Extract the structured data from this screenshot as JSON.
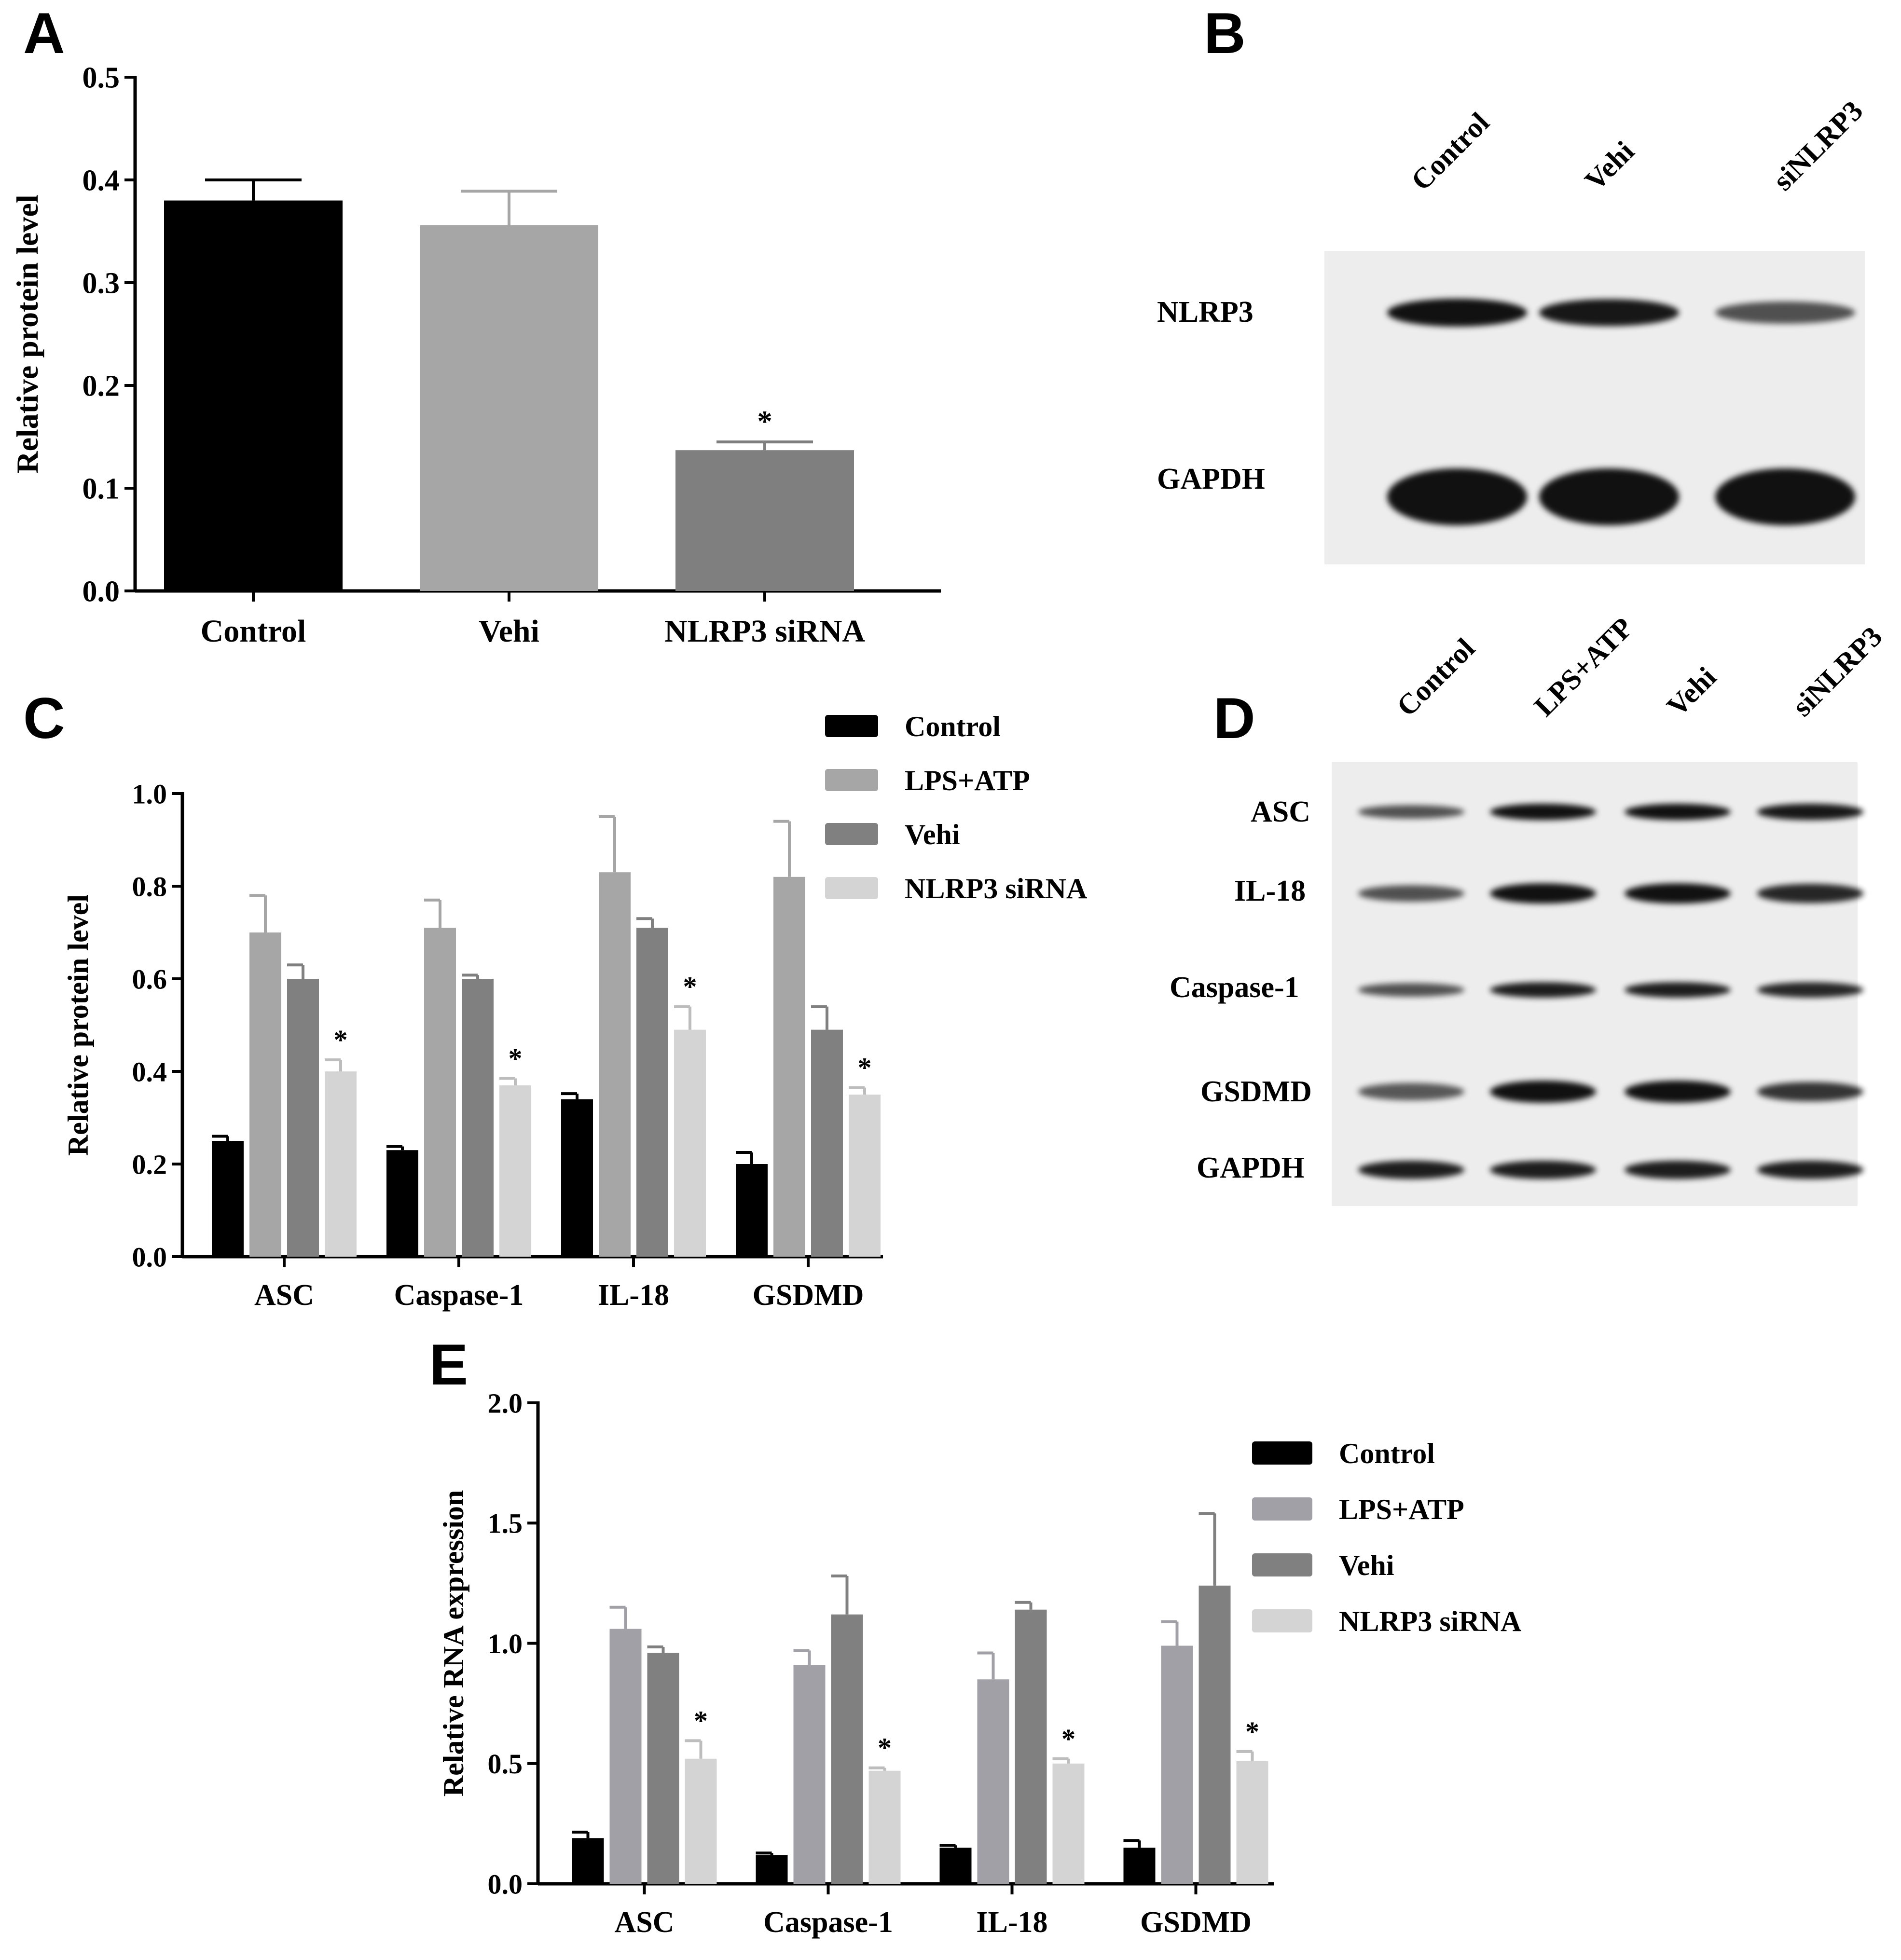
{
  "panels": {
    "a": "A",
    "b": "B",
    "c": "C",
    "d": "D",
    "e": "E"
  },
  "chart_data": [
    {
      "id": "A",
      "type": "bar",
      "ylabel": "Relative protein level",
      "ylim": [
        0,
        0.5
      ],
      "yticks": [
        "0.0",
        "0.1",
        "0.2",
        "0.3",
        "0.4",
        "0.5"
      ],
      "categories": [
        "Control",
        "Vehi",
        "NLRP3 siRNA"
      ],
      "values": [
        0.38,
        0.356,
        0.137
      ],
      "errors": [
        0.02,
        0.033,
        0.008
      ],
      "colors": [
        "#000000",
        "#a6a6a6",
        "#7f7f7f"
      ],
      "annotations": [
        "",
        "",
        "*"
      ]
    },
    {
      "id": "C",
      "type": "bar",
      "ylabel": "Relative protein level",
      "ylim": [
        0,
        1.0
      ],
      "yticks": [
        "0.0",
        "0.2",
        "0.4",
        "0.6",
        "0.8",
        "1.0"
      ],
      "categories": [
        "ASC",
        "Caspase-1",
        "IL-18",
        "GSDMD"
      ],
      "legend": "top-right",
      "series": [
        {
          "name": "Control",
          "color": "#000000",
          "values": [
            0.25,
            0.23,
            0.34,
            0.2
          ],
          "errors": [
            0.01,
            0.008,
            0.012,
            0.025
          ]
        },
        {
          "name": "LPS+ATP",
          "color": "#a6a6a6",
          "values": [
            0.7,
            0.71,
            0.83,
            0.82
          ],
          "errors": [
            0.08,
            0.06,
            0.12,
            0.12
          ]
        },
        {
          "name": "Vehi",
          "color": "#808080",
          "values": [
            0.6,
            0.6,
            0.71,
            0.49
          ],
          "errors": [
            0.03,
            0.008,
            0.02,
            0.05
          ]
        },
        {
          "name": "NLRP3 siRNA",
          "color": "#d4d4d4",
          "values": [
            0.4,
            0.37,
            0.49,
            0.35
          ],
          "errors": [
            0.025,
            0.015,
            0.05,
            0.015
          ],
          "annotations": [
            "*",
            "*",
            "*",
            "*"
          ]
        }
      ]
    },
    {
      "id": "E",
      "type": "bar",
      "ylabel": "Relative RNA expression",
      "ylim": [
        0,
        2.0
      ],
      "yticks": [
        "0.0",
        "0.5",
        "1.0",
        "1.5",
        "2.0"
      ],
      "categories": [
        "ASC",
        "Caspase-1",
        "IL-18",
        "GSDMD"
      ],
      "legend": "top-right",
      "series": [
        {
          "name": "Control",
          "color": "#000000",
          "values": [
            0.19,
            0.12,
            0.15,
            0.15
          ],
          "errors": [
            0.025,
            0.008,
            0.01,
            0.03
          ]
        },
        {
          "name": "LPS+ATP",
          "color": "#a0a0a6",
          "values": [
            1.06,
            0.91,
            0.85,
            0.99
          ],
          "errors": [
            0.09,
            0.06,
            0.11,
            0.1
          ]
        },
        {
          "name": "Vehi",
          "color": "#808080",
          "values": [
            0.96,
            1.12,
            1.14,
            1.24
          ],
          "errors": [
            0.025,
            0.16,
            0.03,
            0.3
          ]
        },
        {
          "name": "NLRP3 siRNA",
          "color": "#d4d4d4",
          "values": [
            0.52,
            0.47,
            0.5,
            0.51
          ],
          "errors": [
            0.075,
            0.012,
            0.02,
            0.04
          ],
          "annotations": [
            "*",
            "*",
            "*",
            "*"
          ]
        }
      ]
    }
  ],
  "blot_b": {
    "lanes": [
      "Control",
      "Vehi",
      "siNLRP3"
    ],
    "rows": [
      {
        "label": "NLRP3",
        "intensity": [
          1.0,
          0.95,
          0.55
        ]
      },
      {
        "label": "GAPDH",
        "intensity": [
          1.0,
          1.0,
          1.0
        ]
      }
    ]
  },
  "blot_d": {
    "lanes": [
      "Control",
      "LPS+ATP",
      "Vehi",
      "siNLRP3"
    ],
    "rows": [
      {
        "label": "ASC",
        "intensity": [
          0.55,
          1.0,
          1.0,
          0.95
        ]
      },
      {
        "label": "IL-18",
        "intensity": [
          0.55,
          1.0,
          1.0,
          0.85
        ]
      },
      {
        "label": "Caspase-1",
        "intensity": [
          0.55,
          0.9,
          0.9,
          0.85
        ]
      },
      {
        "label": "GSDMD",
        "intensity": [
          0.5,
          1.0,
          1.0,
          0.75
        ]
      },
      {
        "label": "GAPDH",
        "intensity": [
          0.9,
          0.9,
          0.9,
          0.9
        ]
      }
    ]
  }
}
